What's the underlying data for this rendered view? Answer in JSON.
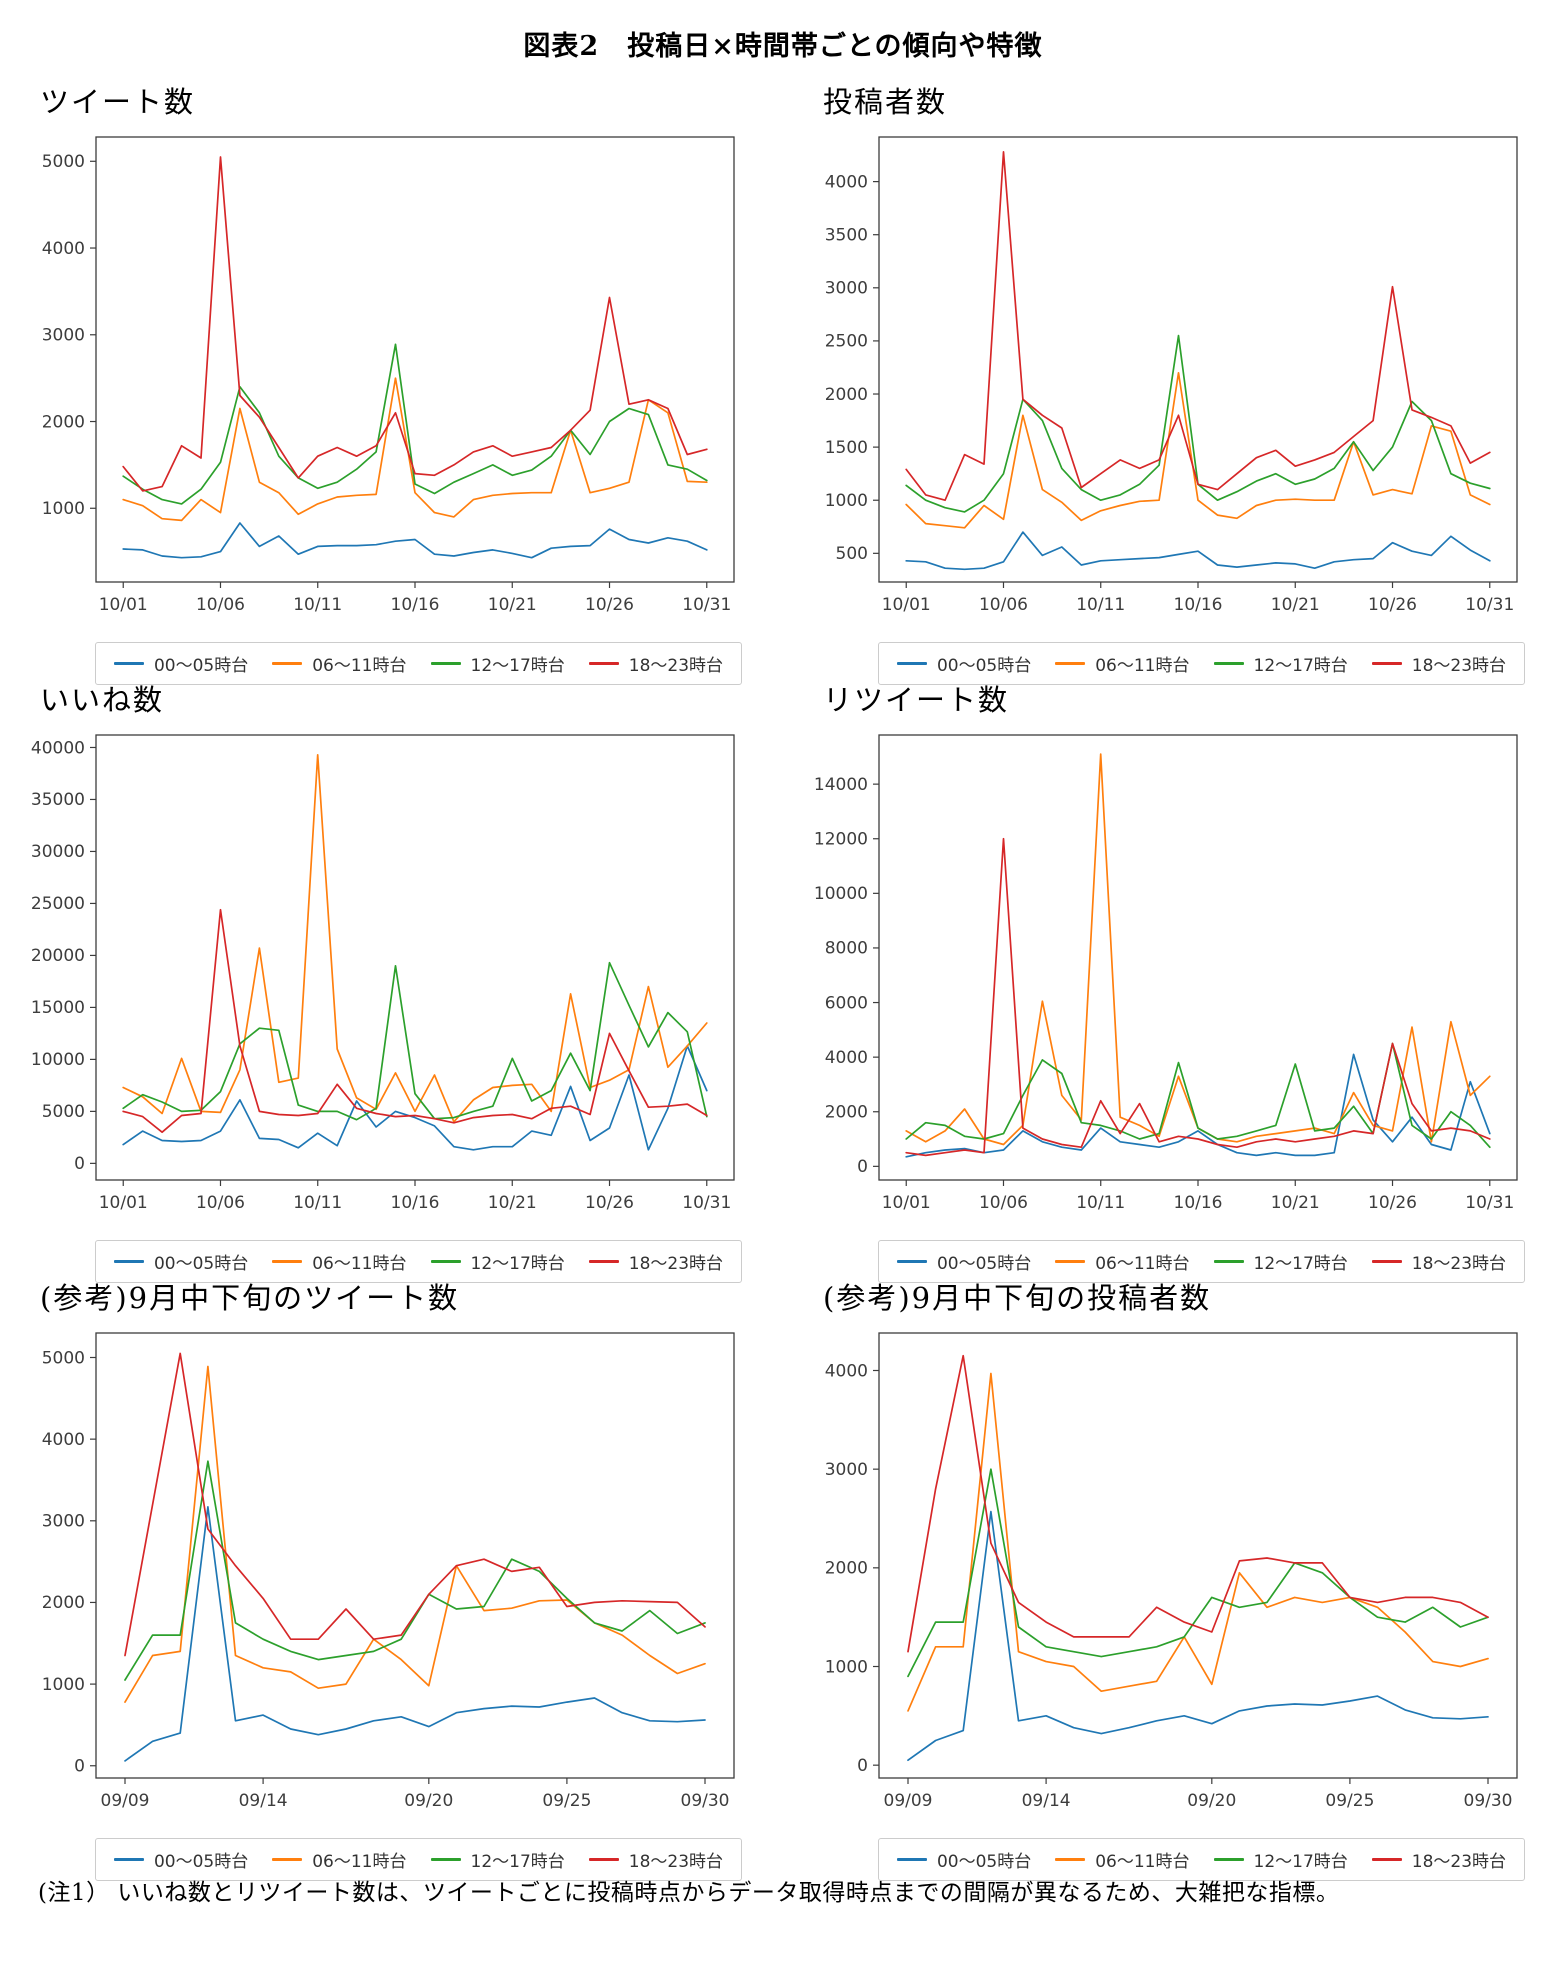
{
  "page": {
    "title": "図表2　投稿日×時間帯ごとの傾向や特徴",
    "note": "(注1） いいね数とリツイート数は、ツイートごとに投稿時点からデータ取得時点までの間隔が異なるため、大雑把な指標。"
  },
  "colors": {
    "blue": "#1f77b4",
    "orange": "#ff7f0e",
    "green": "#2ca02c",
    "red": "#d62728"
  },
  "legend_labels": [
    "00～05時台",
    "06～11時台",
    "12～17時台",
    "18～23時台"
  ],
  "chart_data": [
    {
      "type": "line",
      "title": "ツイート数",
      "grid": false,
      "legend_position": "bottom",
      "x_tick_idx": [
        0,
        5,
        10,
        15,
        20,
        25,
        30
      ],
      "x_tick_labels": [
        "10/01",
        "10/06",
        "10/11",
        "10/16",
        "10/21",
        "10/26",
        "10/31"
      ],
      "y_ticks": [
        1000,
        2000,
        3000,
        4000,
        5000
      ],
      "ylim": [
        150,
        5280
      ],
      "xpad": 1.4,
      "series": [
        {
          "name": "00～05時台",
          "color": "#1f77b4",
          "values": [
            530,
            520,
            450,
            430,
            440,
            500,
            830,
            560,
            680,
            470,
            560,
            570,
            570,
            580,
            620,
            640,
            470,
            450,
            490,
            520,
            480,
            430,
            540,
            560,
            570,
            760,
            640,
            600,
            660,
            620,
            520
          ]
        },
        {
          "name": "06～11時台",
          "color": "#ff7f0e",
          "values": [
            1100,
            1030,
            880,
            860,
            1100,
            950,
            2150,
            1300,
            1180,
            930,
            1050,
            1130,
            1150,
            1160,
            2500,
            1180,
            950,
            900,
            1100,
            1150,
            1170,
            1180,
            1180,
            1900,
            1180,
            1230,
            1300,
            2250,
            2100,
            1310,
            1300
          ]
        },
        {
          "name": "12～17時台",
          "color": "#2ca02c",
          "values": [
            1370,
            1220,
            1100,
            1050,
            1220,
            1530,
            2400,
            2100,
            1600,
            1350,
            1230,
            1300,
            1450,
            1650,
            2890,
            1280,
            1170,
            1300,
            1400,
            1500,
            1380,
            1440,
            1600,
            1900,
            1620,
            2000,
            2150,
            2080,
            1500,
            1450,
            1320
          ]
        },
        {
          "name": "18～23時台",
          "color": "#d62728",
          "values": [
            1480,
            1200,
            1250,
            1720,
            1580,
            5050,
            2300,
            2050,
            1700,
            1350,
            1600,
            1700,
            1600,
            1720,
            2100,
            1400,
            1380,
            1500,
            1650,
            1720,
            1600,
            1650,
            1700,
            1900,
            2130,
            3430,
            2200,
            2250,
            2150,
            1620,
            1680
          ]
        }
      ]
    },
    {
      "type": "line",
      "title": "投稿者数",
      "grid": false,
      "legend_position": "bottom",
      "x_tick_idx": [
        0,
        5,
        10,
        15,
        20,
        25,
        30
      ],
      "x_tick_labels": [
        "10/01",
        "10/06",
        "10/11",
        "10/16",
        "10/21",
        "10/26",
        "10/31"
      ],
      "y_ticks": [
        500,
        1000,
        1500,
        2000,
        2500,
        3000,
        3500,
        4000
      ],
      "ylim": [
        230,
        4420
      ],
      "xpad": 1.4,
      "series": [
        {
          "name": "00～05時台",
          "color": "#1f77b4",
          "values": [
            430,
            420,
            360,
            350,
            360,
            420,
            700,
            480,
            560,
            390,
            430,
            440,
            450,
            460,
            490,
            520,
            390,
            370,
            390,
            410,
            400,
            360,
            420,
            440,
            450,
            600,
            520,
            480,
            660,
            530,
            430
          ]
        },
        {
          "name": "06～11時台",
          "color": "#ff7f0e",
          "values": [
            960,
            780,
            760,
            740,
            950,
            820,
            1800,
            1100,
            980,
            810,
            900,
            950,
            990,
            1000,
            2200,
            1000,
            860,
            830,
            950,
            1000,
            1010,
            1000,
            1000,
            1550,
            1050,
            1100,
            1060,
            1700,
            1650,
            1050,
            960
          ]
        },
        {
          "name": "12～17時台",
          "color": "#2ca02c",
          "values": [
            1140,
            1000,
            930,
            890,
            1000,
            1250,
            1950,
            1750,
            1300,
            1100,
            1000,
            1050,
            1150,
            1330,
            2550,
            1150,
            1000,
            1080,
            1180,
            1250,
            1150,
            1200,
            1300,
            1550,
            1280,
            1500,
            1930,
            1750,
            1250,
            1160,
            1110
          ]
        },
        {
          "name": "18～23時台",
          "color": "#d62728",
          "values": [
            1290,
            1050,
            1000,
            1430,
            1340,
            4280,
            1950,
            1800,
            1680,
            1120,
            1250,
            1380,
            1300,
            1380,
            1800,
            1150,
            1100,
            1250,
            1400,
            1470,
            1320,
            1380,
            1450,
            1600,
            1750,
            3010,
            1850,
            1780,
            1700,
            1350,
            1450
          ]
        }
      ]
    },
    {
      "type": "line",
      "title": "いいね数",
      "grid": false,
      "legend_position": "bottom",
      "x_tick_idx": [
        0,
        5,
        10,
        15,
        20,
        25,
        30
      ],
      "x_tick_labels": [
        "10/01",
        "10/06",
        "10/11",
        "10/16",
        "10/21",
        "10/26",
        "10/31"
      ],
      "y_ticks": [
        0,
        5000,
        10000,
        15000,
        20000,
        25000,
        30000,
        35000,
        40000
      ],
      "ylim": [
        -1600,
        41200
      ],
      "xpad": 1.4,
      "series": [
        {
          "name": "00～05時台",
          "color": "#1f77b4",
          "values": [
            1800,
            3100,
            2200,
            2100,
            2200,
            3100,
            6100,
            2400,
            2300,
            1500,
            2900,
            1700,
            6000,
            3500,
            5000,
            4400,
            3600,
            1600,
            1300,
            1600,
            1600,
            3100,
            2700,
            7400,
            2200,
            3400,
            8500,
            1300,
            5300,
            11300,
            7000
          ]
        },
        {
          "name": "06～11時台",
          "color": "#ff7f0e",
          "values": [
            7300,
            6400,
            4800,
            10100,
            5000,
            4900,
            9000,
            20700,
            7800,
            8200,
            39300,
            11000,
            6300,
            5200,
            8700,
            5000,
            8500,
            4000,
            6100,
            7300,
            7500,
            7600,
            5000,
            16300,
            7300,
            8000,
            9000,
            17000,
            9250,
            11300,
            13500
          ]
        },
        {
          "name": "12～17時台",
          "color": "#2ca02c",
          "values": [
            5300,
            6600,
            5900,
            5000,
            5100,
            6900,
            11500,
            13000,
            12800,
            5600,
            5000,
            5000,
            4200,
            5300,
            19000,
            6700,
            4300,
            4400,
            5000,
            5500,
            10100,
            6000,
            7000,
            10600,
            7000,
            19300,
            15200,
            11200,
            14500,
            12650,
            4500
          ]
        },
        {
          "name": "18～23時台",
          "color": "#d62728",
          "values": [
            5000,
            4500,
            3000,
            4600,
            4800,
            24400,
            11300,
            5000,
            4700,
            4600,
            4800,
            7600,
            5300,
            4800,
            4500,
            4600,
            4300,
            3900,
            4400,
            4600,
            4700,
            4300,
            5300,
            5500,
            4700,
            12500,
            8900,
            5400,
            5500,
            5700,
            4600
          ]
        }
      ]
    },
    {
      "type": "line",
      "title": "リツイート数",
      "grid": false,
      "legend_position": "bottom",
      "x_tick_idx": [
        0,
        5,
        10,
        15,
        20,
        25,
        30
      ],
      "x_tick_labels": [
        "10/01",
        "10/06",
        "10/11",
        "10/16",
        "10/21",
        "10/26",
        "10/31"
      ],
      "y_ticks": [
        0,
        2000,
        4000,
        6000,
        8000,
        10000,
        12000,
        14000
      ],
      "ylim": [
        -500,
        15800
      ],
      "xpad": 1.4,
      "series": [
        {
          "name": "00～05時台",
          "color": "#1f77b4",
          "values": [
            350,
            500,
            600,
            650,
            500,
            600,
            1300,
            900,
            700,
            600,
            1400,
            900,
            800,
            700,
            900,
            1300,
            800,
            500,
            400,
            500,
            400,
            400,
            500,
            4100,
            1700,
            900,
            1800,
            800,
            600,
            3100,
            1200
          ]
        },
        {
          "name": "06～11時台",
          "color": "#ff7f0e",
          "values": [
            1300,
            900,
            1300,
            2100,
            1000,
            800,
            1500,
            6050,
            2600,
            1700,
            15100,
            1800,
            1500,
            1100,
            3300,
            1400,
            1000,
            900,
            1100,
            1200,
            1300,
            1400,
            1200,
            2700,
            1500,
            1300,
            5100,
            900,
            5300,
            2600,
            3300
          ]
        },
        {
          "name": "12～17時台",
          "color": "#2ca02c",
          "values": [
            1000,
            1600,
            1500,
            1100,
            1000,
            1200,
            2600,
            3900,
            3400,
            1600,
            1500,
            1300,
            1000,
            1200,
            3800,
            1400,
            1000,
            1100,
            1300,
            1500,
            3750,
            1300,
            1400,
            2200,
            1200,
            4500,
            1500,
            1000,
            2000,
            1500,
            700
          ]
        },
        {
          "name": "18～23時台",
          "color": "#d62728",
          "values": [
            500,
            400,
            500,
            600,
            500,
            12000,
            1400,
            1000,
            800,
            700,
            2400,
            1200,
            2300,
            900,
            1100,
            1000,
            800,
            700,
            900,
            1000,
            900,
            1000,
            1100,
            1300,
            1200,
            4500,
            2300,
            1300,
            1400,
            1300,
            1000
          ]
        }
      ]
    },
    {
      "type": "line",
      "title": "(参考)9月中下旬のツイート数",
      "grid": false,
      "legend_position": "bottom",
      "x_tick_idx": [
        0,
        5,
        11,
        16,
        21
      ],
      "x_tick_labels": [
        "09/09",
        "09/14",
        "09/20",
        "09/25",
        "09/30"
      ],
      "y_ticks": [
        0,
        1000,
        2000,
        3000,
        4000,
        5000
      ],
      "ylim": [
        -150,
        5300
      ],
      "xpad": 1.05,
      "series": [
        {
          "name": "00～05時台",
          "color": "#1f77b4",
          "values": [
            60,
            300,
            400,
            3170,
            550,
            620,
            450,
            380,
            450,
            550,
            600,
            480,
            650,
            700,
            730,
            720,
            780,
            830,
            650,
            550,
            540,
            560
          ]
        },
        {
          "name": "06～11時台",
          "color": "#ff7f0e",
          "values": [
            780,
            1350,
            1400,
            4890,
            1350,
            1200,
            1150,
            950,
            1000,
            1550,
            1300,
            980,
            2450,
            1900,
            1930,
            2020,
            2030,
            1750,
            1600,
            1350,
            1130,
            1250
          ]
        },
        {
          "name": "12～17時台",
          "color": "#2ca02c",
          "values": [
            1050,
            1600,
            1600,
            3730,
            1750,
            1550,
            1400,
            1300,
            1350,
            1400,
            1550,
            2100,
            1920,
            1950,
            2530,
            2380,
            2050,
            1750,
            1650,
            1900,
            1620,
            1750
          ]
        },
        {
          "name": "18～23時台",
          "color": "#d62728",
          "values": [
            1350,
            3200,
            5050,
            2900,
            2450,
            2050,
            1550,
            1550,
            1920,
            1550,
            1600,
            2100,
            2450,
            2530,
            2380,
            2430,
            1950,
            2000,
            2020,
            2010,
            2000,
            1700
          ]
        }
      ]
    },
    {
      "type": "line",
      "title": "(参考)9月中下旬の投稿者数",
      "grid": false,
      "legend_position": "bottom",
      "x_tick_idx": [
        0,
        5,
        11,
        16,
        21
      ],
      "x_tick_labels": [
        "09/09",
        "09/14",
        "09/20",
        "09/25",
        "09/30"
      ],
      "y_ticks": [
        0,
        1000,
        2000,
        3000,
        4000
      ],
      "ylim": [
        -130,
        4380
      ],
      "xpad": 1.05,
      "series": [
        {
          "name": "00～05時台",
          "color": "#1f77b4",
          "values": [
            50,
            250,
            350,
            2570,
            450,
            500,
            380,
            320,
            380,
            450,
            500,
            420,
            550,
            600,
            620,
            610,
            650,
            700,
            560,
            480,
            470,
            490
          ]
        },
        {
          "name": "06～11時台",
          "color": "#ff7f0e",
          "values": [
            550,
            1200,
            1200,
            3970,
            1150,
            1050,
            1000,
            750,
            800,
            850,
            1300,
            820,
            1950,
            1600,
            1700,
            1650,
            1700,
            1600,
            1350,
            1050,
            1000,
            1080
          ]
        },
        {
          "name": "12～17時台",
          "color": "#2ca02c",
          "values": [
            900,
            1450,
            1450,
            3000,
            1400,
            1200,
            1150,
            1100,
            1150,
            1200,
            1300,
            1700,
            1600,
            1650,
            2050,
            1950,
            1700,
            1500,
            1450,
            1600,
            1400,
            1500
          ]
        },
        {
          "name": "18～23時台",
          "color": "#d62728",
          "values": [
            1150,
            2800,
            4150,
            2250,
            1650,
            1450,
            1300,
            1300,
            1300,
            1600,
            1450,
            1350,
            2070,
            2100,
            2050,
            2050,
            1700,
            1650,
            1700,
            1700,
            1650,
            1500
          ]
        }
      ]
    }
  ]
}
